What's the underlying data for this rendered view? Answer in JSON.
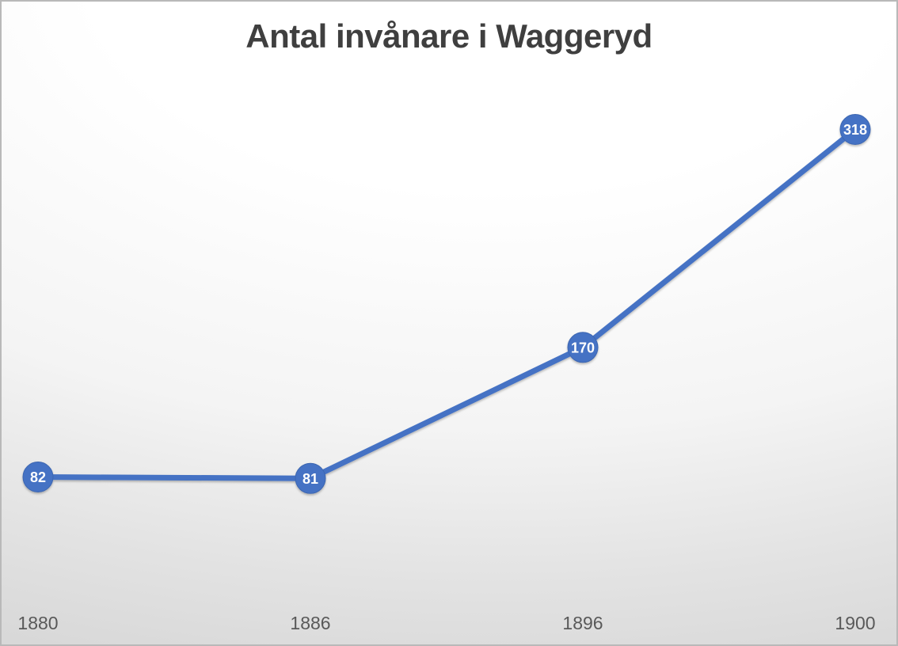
{
  "chart_data": {
    "type": "line",
    "title": "Antal invånare i Waggeryd",
    "categories": [
      "1880",
      "1886",
      "1896",
      "1900"
    ],
    "series": [
      {
        "values": [
          82,
          81,
          170,
          318
        ]
      }
    ],
    "data_labels": [
      "82",
      "81",
      "170",
      "318"
    ],
    "data_labels_position": "inside-marker",
    "xlabel": "",
    "ylabel": "",
    "ylim": [
      0,
      350
    ],
    "grid_step": 50,
    "grid": "horizontal",
    "y_axis_labels_visible": false,
    "legend": "none",
    "colors": {
      "line": "#4472c4",
      "marker_fill": "#4472c4",
      "marker_border": "#3c66b1",
      "data_label_text": "#ffffff",
      "gridline": "#c9c9c9",
      "x_axis_line": "#333333",
      "tick_label": "#595959",
      "title": "#3f3f3f",
      "background_top": "#ffffff",
      "background_bottom": "#d6d6d6"
    }
  }
}
